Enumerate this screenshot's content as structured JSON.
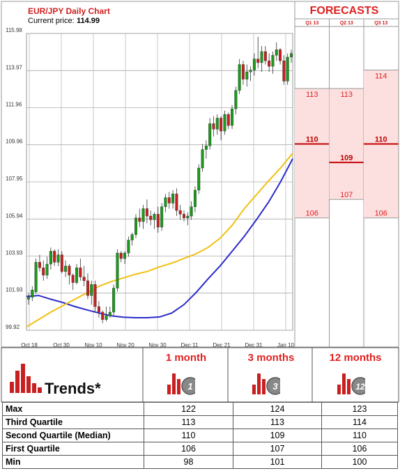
{
  "chart_data": {
    "type": "candlestick",
    "title": "EUR/JPY Daily Chart",
    "current_price_label": "Current price:",
    "current_price": "114.99",
    "y_ticks": [
      "115.98",
      "113.97",
      "111.96",
      "109.96",
      "107.95",
      "105.94",
      "103.93",
      "101.93",
      "99.92"
    ],
    "x_ticks": [
      "Oct 18",
      "Oct 30",
      "Nov 10",
      "Nov 20",
      "Nov 30",
      "Dec 11",
      "Dec 21",
      "Dec 31",
      "Jan 10"
    ],
    "ylim": [
      99.92,
      115.98
    ],
    "grid": true,
    "candles": [
      [
        101.6,
        101.9,
        101.3,
        101.7
      ],
      [
        101.7,
        102.3,
        101.5,
        102.1
      ],
      [
        102.0,
        103.8,
        101.9,
        103.6
      ],
      [
        103.6,
        104.0,
        103.1,
        103.3
      ],
      [
        103.3,
        103.7,
        102.6,
        102.9
      ],
      [
        102.9,
        103.9,
        102.7,
        103.5
      ],
      [
        103.5,
        104.4,
        103.2,
        104.2
      ],
      [
        104.2,
        104.3,
        103.4,
        103.6
      ],
      [
        103.6,
        104.3,
        103.4,
        104.0
      ],
      [
        104.0,
        104.2,
        103.0,
        103.1
      ],
      [
        103.1,
        103.7,
        102.8,
        103.4
      ],
      [
        103.4,
        103.5,
        102.4,
        102.9
      ],
      [
        102.9,
        103.0,
        102.1,
        102.5
      ],
      [
        102.5,
        103.5,
        102.4,
        103.3
      ],
      [
        103.3,
        103.8,
        102.6,
        102.8
      ],
      [
        102.8,
        103.4,
        102.3,
        102.6
      ],
      [
        102.6,
        103.0,
        101.6,
        101.8
      ],
      [
        101.8,
        102.6,
        101.3,
        102.4
      ],
      [
        102.4,
        102.6,
        100.9,
        101.2
      ],
      [
        101.2,
        101.5,
        100.6,
        100.9
      ],
      [
        100.9,
        101.0,
        100.3,
        100.5
      ],
      [
        100.5,
        101.2,
        100.4,
        100.7
      ],
      [
        100.7,
        101.2,
        100.6,
        100.9
      ],
      [
        100.9,
        102.4,
        100.7,
        102.2
      ],
      [
        102.2,
        104.3,
        102.0,
        104.1
      ],
      [
        104.1,
        104.2,
        103.6,
        103.8
      ],
      [
        103.8,
        104.2,
        103.5,
        104.1
      ],
      [
        104.1,
        105.0,
        103.9,
        104.8
      ],
      [
        104.8,
        105.2,
        104.5,
        105.1
      ],
      [
        105.1,
        106.2,
        104.9,
        106.0
      ],
      [
        106.0,
        106.5,
        105.5,
        105.8
      ],
      [
        105.8,
        106.7,
        105.4,
        106.5
      ],
      [
        106.5,
        107.0,
        105.7,
        106.1
      ],
      [
        106.1,
        106.4,
        105.6,
        105.9
      ],
      [
        105.9,
        106.3,
        105.4,
        106.2
      ],
      [
        106.2,
        106.6,
        105.2,
        105.5
      ],
      [
        105.5,
        106.8,
        105.3,
        106.6
      ],
      [
        106.6,
        107.3,
        106.3,
        107.1
      ],
      [
        107.1,
        107.4,
        106.5,
        106.8
      ],
      [
        106.8,
        107.5,
        106.5,
        107.3
      ],
      [
        107.3,
        107.6,
        106.1,
        106.4
      ],
      [
        106.4,
        106.7,
        105.9,
        106.2
      ],
      [
        106.2,
        106.4,
        105.8,
        106.0
      ],
      [
        106.0,
        106.3,
        105.6,
        106.1
      ],
      [
        106.1,
        106.9,
        105.9,
        106.6
      ],
      [
        106.6,
        107.7,
        106.3,
        107.5
      ],
      [
        107.5,
        108.9,
        107.3,
        108.7
      ],
      [
        108.7,
        110.0,
        108.5,
        109.7
      ],
      [
        109.7,
        110.2,
        109.2,
        109.9
      ],
      [
        109.9,
        111.4,
        109.7,
        111.1
      ],
      [
        111.1,
        111.5,
        110.4,
        110.8
      ],
      [
        110.8,
        111.6,
        110.5,
        111.4
      ],
      [
        111.4,
        111.5,
        110.2,
        110.7
      ],
      [
        110.7,
        111.8,
        110.5,
        111.6
      ],
      [
        111.6,
        111.7,
        110.8,
        111.0
      ],
      [
        111.0,
        112.1,
        110.8,
        111.9
      ],
      [
        111.9,
        113.1,
        111.6,
        112.9
      ],
      [
        112.9,
        114.6,
        112.7,
        114.3
      ],
      [
        114.3,
        114.5,
        113.2,
        113.5
      ],
      [
        113.5,
        114.3,
        113.1,
        113.9
      ],
      [
        113.9,
        114.2,
        113.4,
        114.0
      ],
      [
        114.0,
        114.9,
        113.7,
        114.6
      ],
      [
        114.6,
        115.8,
        114.1,
        114.4
      ],
      [
        114.4,
        115.3,
        113.9,
        115.0
      ],
      [
        115.0,
        115.3,
        114.3,
        114.5
      ],
      [
        114.5,
        114.9,
        113.9,
        114.2
      ],
      [
        114.2,
        115.0,
        113.8,
        114.8
      ],
      [
        114.8,
        115.5,
        114.5,
        115.1
      ],
      [
        115.1,
        115.2,
        114.3,
        114.5
      ],
      [
        114.5,
        114.8,
        113.2,
        113.4
      ],
      [
        113.4,
        114.9,
        113.2,
        114.7
      ],
      [
        114.7,
        115.1,
        114.4,
        114.9
      ]
    ],
    "ma_long": [
      101.75,
      101.8,
      101.6,
      101.42,
      101.2,
      101.02,
      100.85,
      100.7,
      100.63,
      100.6,
      100.6,
      100.64,
      100.85,
      101.3,
      101.95,
      102.7,
      103.4,
      104.2,
      105.0,
      105.9,
      106.85,
      107.95,
      109.2
    ],
    "ma_short": [
      100.1,
      100.5,
      100.9,
      101.25,
      101.6,
      101.95,
      102.3,
      102.55,
      102.75,
      102.95,
      103.1,
      103.35,
      103.55,
      103.8,
      104.05,
      104.4,
      104.9,
      105.6,
      106.5,
      107.25,
      108.0,
      108.7,
      109.5
    ],
    "forecasts": {
      "title": "FORECASTS",
      "columns": [
        {
          "label": "Q1 13",
          "q1": 106,
          "median": 110,
          "q3": 113
        },
        {
          "label": "Q2 13",
          "q1": 107,
          "median": 109,
          "q3": 113
        },
        {
          "label": "Q3 13",
          "q1": 106,
          "median": 110,
          "q3": 114
        }
      ]
    },
    "colors": {
      "up": "#1a9a1a",
      "down": "#c82020",
      "ma_long": "#2a2ac8",
      "ma_short": "#f0c010",
      "forecast_fill": "#fce0e0",
      "forecast_accent": "#e02020"
    }
  },
  "trends": {
    "title": "Trends*",
    "periods": [
      {
        "label": "1 month",
        "badge": "1"
      },
      {
        "label": "3 months",
        "badge": "3"
      },
      {
        "label": "12 months",
        "badge": "12"
      }
    ]
  },
  "stats_rows": [
    {
      "label": "Max",
      "values": [
        "122",
        "124",
        "123"
      ]
    },
    {
      "label": "Third Quartile",
      "values": [
        "113",
        "113",
        "114"
      ]
    },
    {
      "label": "Second Quartile (Median)",
      "values": [
        "110",
        "109",
        "110"
      ]
    },
    {
      "label": "First Quartile",
      "values": [
        "106",
        "107",
        "106"
      ]
    },
    {
      "label": "Min",
      "values": [
        "98",
        "101",
        "100"
      ]
    }
  ]
}
